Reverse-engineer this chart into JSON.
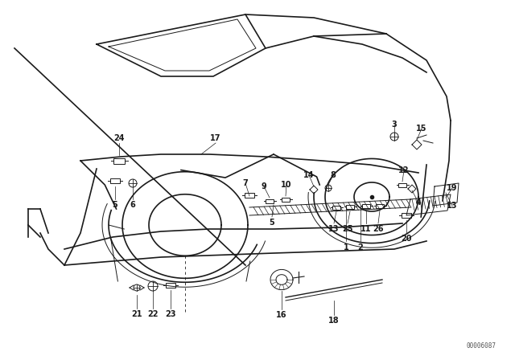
{
  "bg_color": "#ffffff",
  "line_color": "#1a1a1a",
  "fig_width": 6.4,
  "fig_height": 4.48,
  "dpi": 100,
  "watermark": "00006087"
}
